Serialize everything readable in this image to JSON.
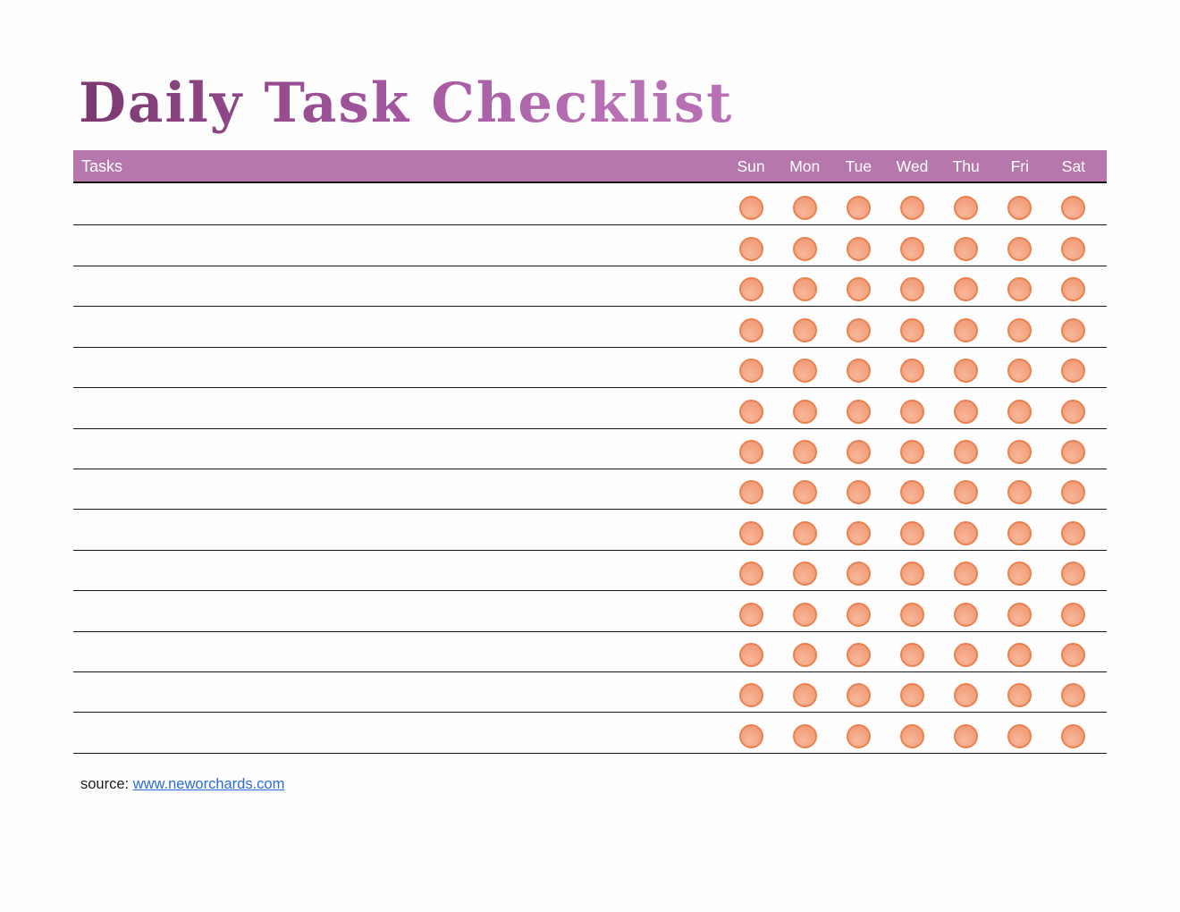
{
  "page": {
    "title": "Daily Task Checklist",
    "source_label": "source:",
    "source_link": "www.neworchards.com"
  },
  "table": {
    "tasks_header": "Tasks",
    "days": [
      "Sun",
      "Mon",
      "Tue",
      "Wed",
      "Thu",
      "Fri",
      "Sat"
    ],
    "rows": 14,
    "row_values": [
      "",
      "",
      "",
      "",
      "",
      "",
      "",
      "",
      "",
      "",
      "",
      "",
      "",
      ""
    ]
  },
  "colors": {
    "header_bar": "#b577ac",
    "title_dark": "#7b3970",
    "title_mid": "#a1549c",
    "title_light": "#b870b4",
    "circle_fill": "#f3a381",
    "circle_fill_light": "#f8b79a",
    "circle_fill_dark": "#ef9672",
    "circle_border": "#e9824f",
    "line": "#161616",
    "link": "#2b6bd8",
    "text": "#202020"
  }
}
